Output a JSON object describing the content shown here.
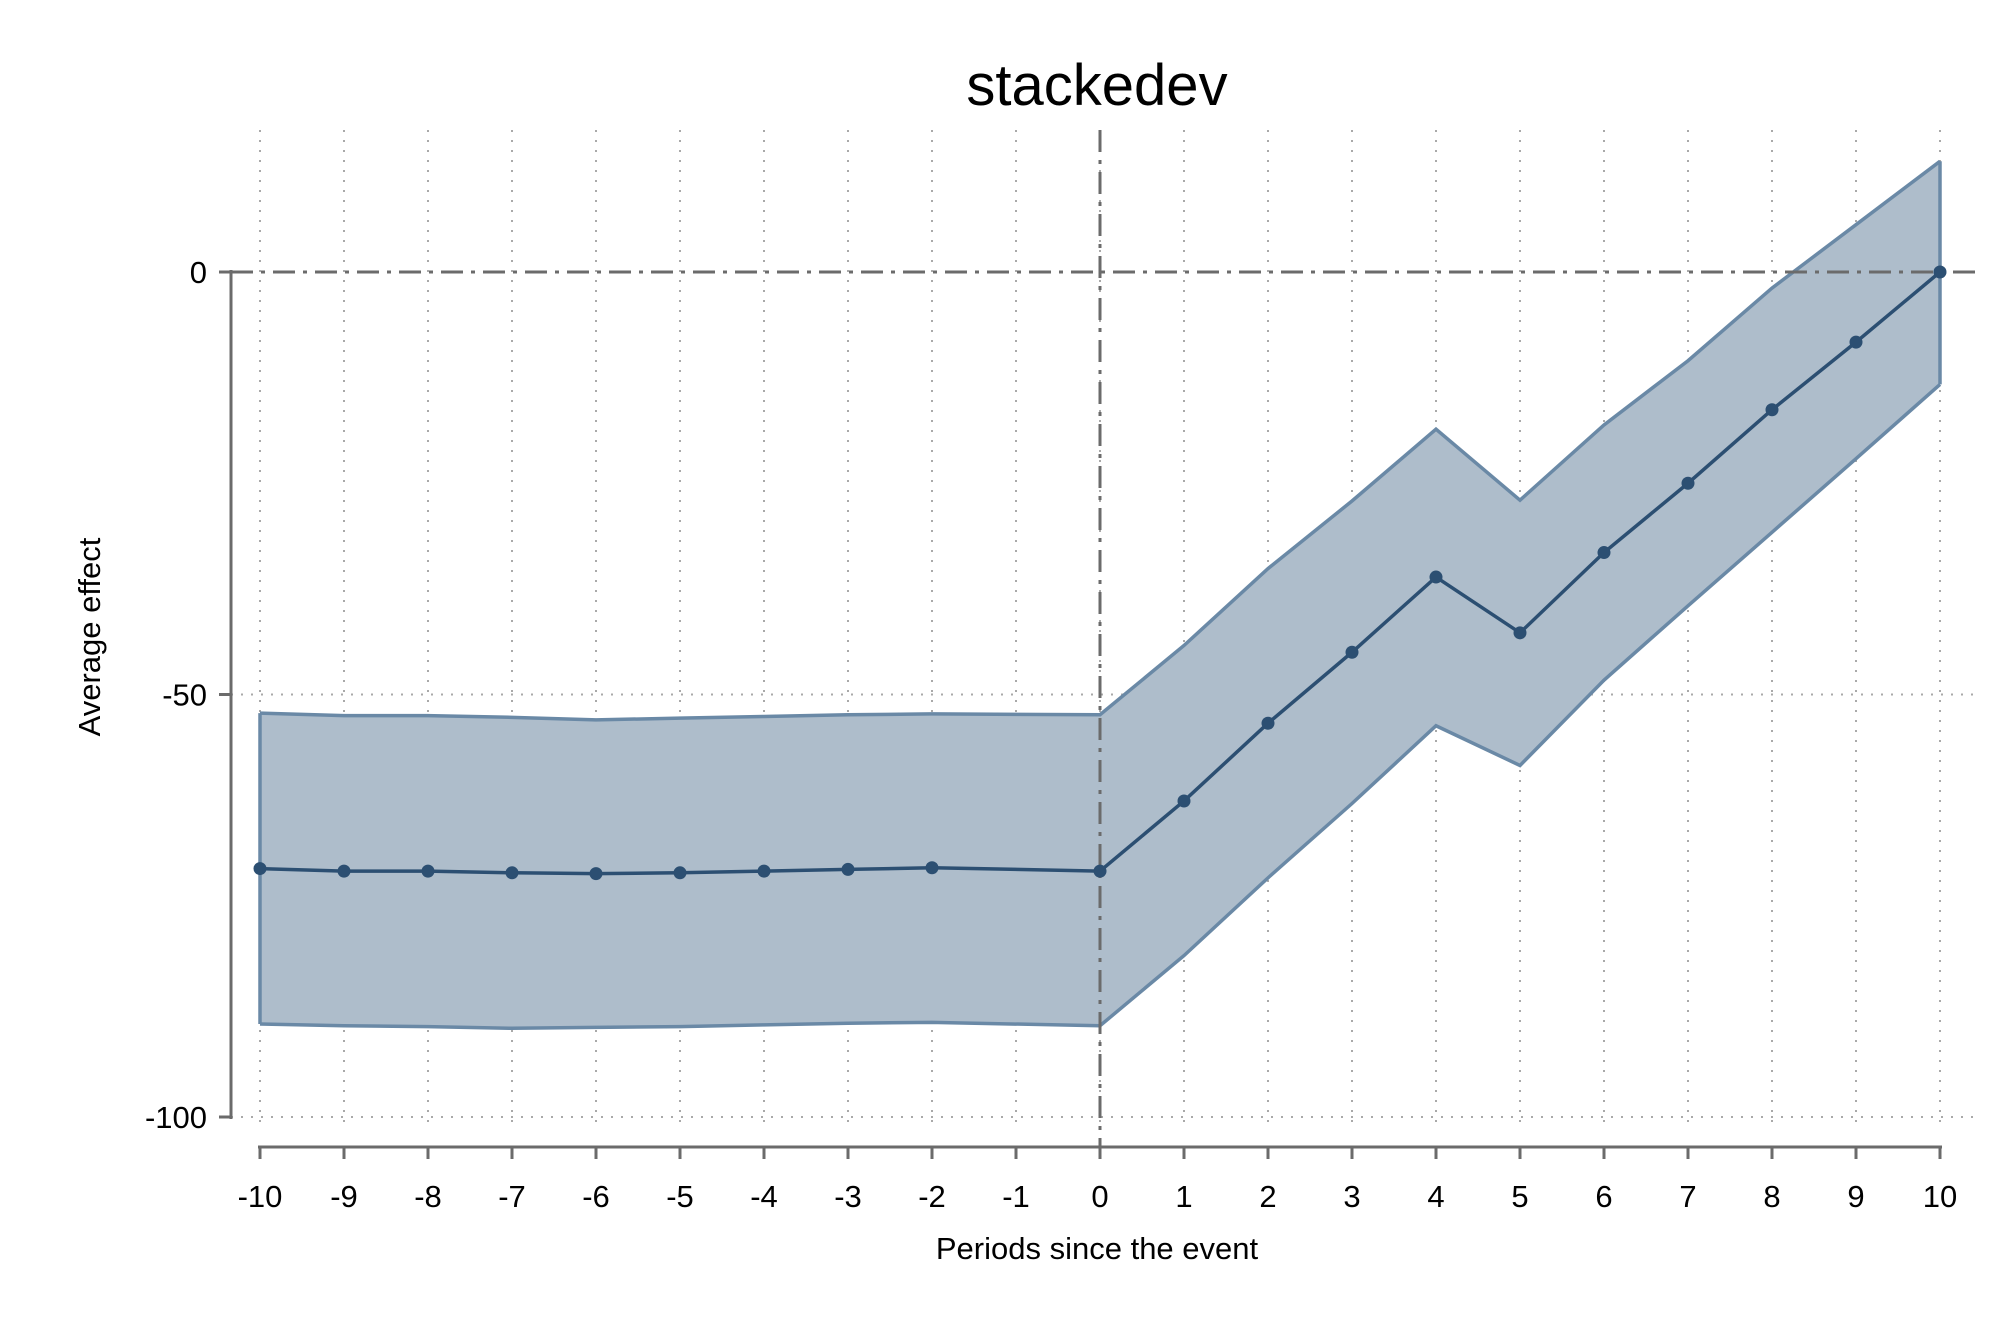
{
  "chart_data": {
    "type": "line",
    "title": "stackedev",
    "xlabel": "Periods since the event",
    "ylabel": "Average effect",
    "x": [
      -10,
      -9,
      -8,
      -7,
      -6,
      -5,
      -4,
      -3,
      -2,
      -1,
      0,
      1,
      2,
      3,
      4,
      5,
      6,
      7,
      8,
      9,
      10
    ],
    "x_tick_labels": [
      "-10",
      "-9",
      "-8",
      "-7",
      "-6",
      "-5",
      "-4",
      "-3",
      "-2",
      "-1",
      "0",
      "1",
      "2",
      "3",
      "4",
      "5",
      "6",
      "7",
      "8",
      "9",
      "10"
    ],
    "y_ticks": [
      0,
      -50,
      -100
    ],
    "y_tick_labels": [
      "0",
      "-50",
      "-100"
    ],
    "xlim": [
      -10.35,
      10.35
    ],
    "ylim": [
      -104,
      18
    ],
    "reference_lines": {
      "x": 0,
      "y": 0
    },
    "grid": true,
    "series": [
      {
        "values": [
          -70.6,
          -70.9,
          -70.9,
          -71.1,
          -71.2,
          -71.1,
          -70.9,
          -70.7,
          -70.5,
          null,
          -70.9,
          -62.6,
          -53.4,
          -45.0,
          -36.1,
          -42.7,
          -33.2,
          -25.0,
          -16.3,
          -8.3,
          0.0
        ],
        "ci_lower": [
          -89.0,
          -89.2,
          -89.3,
          -89.5,
          -89.4,
          -89.3,
          -89.1,
          -88.9,
          -88.8,
          null,
          -89.2,
          -80.9,
          -71.7,
          -62.9,
          -53.7,
          -58.4,
          -48.3,
          -39.5,
          -30.8,
          -22.1,
          -13.3
        ],
        "ci_upper": [
          -52.2,
          -52.5,
          -52.5,
          -52.7,
          -53.0,
          -52.8,
          -52.6,
          -52.4,
          -52.3,
          null,
          -52.4,
          -44.2,
          -35.1,
          -27.1,
          -18.6,
          -27.0,
          -18.1,
          -10.5,
          -1.9,
          5.6,
          13.1
        ]
      }
    ],
    "colors": {
      "line": "#2c4f72",
      "marker": "#2c4f72",
      "band_fill": "#aebdcb",
      "band_edge": "#6a89a6"
    }
  }
}
